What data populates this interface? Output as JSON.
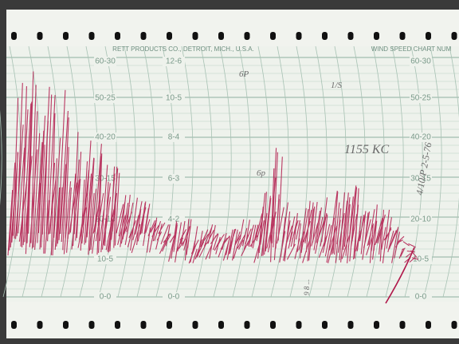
{
  "header": {
    "maker": "RETT PRODUCTS CO., DETROIT, MICH., U.S.A.",
    "chart_name": "WIND SPEED CHART NUM"
  },
  "scales": {
    "left": [
      "60-30",
      "50-25",
      "40-20",
      "30-15",
      "20-10",
      "10-5",
      "0-0"
    ],
    "middle": [
      "12-6",
      "10-5",
      "8-4",
      "6-3",
      "4-2",
      "0-0"
    ],
    "right": [
      "60-30",
      "50-25",
      "40-20",
      "30-15",
      "20-10",
      "10-5",
      "0-0"
    ]
  },
  "annotations": [
    "6P",
    "1/S",
    "1155 KC",
    "6p",
    "4/10/P 2-5-76",
    "9 8 ..."
  ]
}
